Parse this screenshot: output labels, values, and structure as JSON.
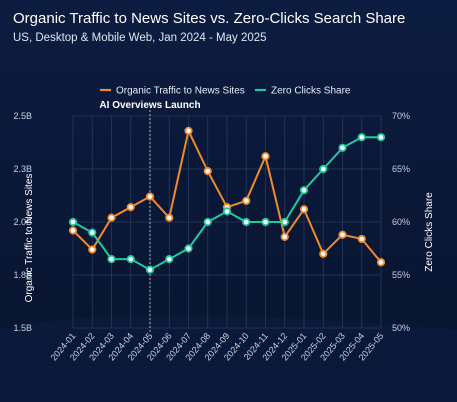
{
  "title": "Organic Traffic to News Sites vs. Zero-Clicks Search Share",
  "subtitle": "US, Desktop & Mobile Web, Jan 2024 - May 2025",
  "colors": {
    "background": "#0b1a3c",
    "traffic": "#f08a2e",
    "zero_clicks": "#22c9a0",
    "grid": "#2a3a5c"
  },
  "chart_data": {
    "type": "line",
    "x": [
      "2024-01",
      "2024-02",
      "2024-03",
      "2024-04",
      "2024-05",
      "2024-06",
      "2024-07",
      "2024-08",
      "2024-09",
      "2024-10",
      "2024-11",
      "2024-12",
      "2025-01",
      "2025-02",
      "2025-03",
      "2025-04",
      "2025-05"
    ],
    "series": [
      {
        "name": "Organic Traffic to News Sites",
        "axis": "left",
        "color": "#f08a2e",
        "values": [
          1.96,
          1.87,
          2.02,
          2.07,
          2.12,
          2.02,
          2.43,
          2.24,
          2.07,
          2.1,
          2.31,
          1.93,
          2.06,
          1.85,
          1.94,
          1.92,
          1.81
        ]
      },
      {
        "name": "Zero Clicks Share",
        "axis": "right",
        "color": "#22c9a0",
        "values": [
          60,
          59,
          56.5,
          56.5,
          55.5,
          56.5,
          57.5,
          60,
          61,
          60,
          60,
          60,
          63,
          65,
          67,
          68,
          68
        ]
      }
    ],
    "ylabel": "Organic Traffic to News Sites",
    "y2label": "Zero Clicks Share",
    "ylim": [
      1.5,
      2.5
    ],
    "y2lim": [
      50,
      70
    ],
    "yticks": [
      {
        "value": 1.5,
        "label": "1.5B"
      },
      {
        "value": 1.75,
        "label": "1.8B"
      },
      {
        "value": 2.0,
        "label": "2.0B"
      },
      {
        "value": 2.25,
        "label": "2.3B"
      },
      {
        "value": 2.5,
        "label": "2.5B"
      }
    ],
    "y2ticks": [
      {
        "value": 50,
        "label": "50%"
      },
      {
        "value": 55,
        "label": "55%"
      },
      {
        "value": 60,
        "label": "60%"
      },
      {
        "value": 65,
        "label": "65%"
      },
      {
        "value": 70,
        "label": "70%"
      }
    ],
    "annotations": [
      {
        "x": "2024-05",
        "text": "AI Overviews Launch",
        "style": "dashed-vertical-line"
      }
    ],
    "legend_position": "top-center",
    "grid": true
  }
}
